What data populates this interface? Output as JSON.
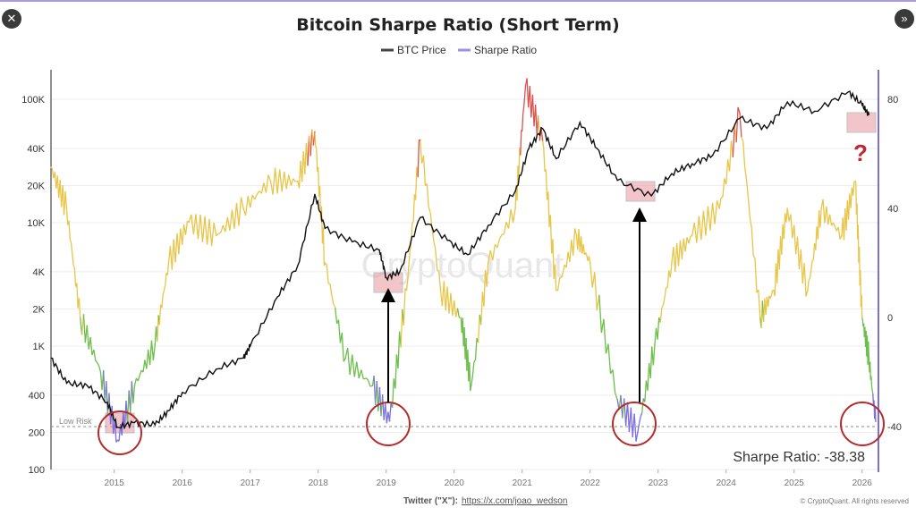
{
  "nav": {
    "close_icon": "close-icon",
    "next_icon": "double-chevron-right-icon",
    "close_label": "✕",
    "next_label": "»"
  },
  "chart_data": {
    "type": "line",
    "title": "Bitcoin Sharpe Ratio (Short Term)",
    "legend": [
      {
        "name": "BTC Price",
        "color": "#111111"
      },
      {
        "name": "Sharpe Ratio",
        "color": "#7b6fe0"
      }
    ],
    "legend_placement": "top-center",
    "left_axis": {
      "scale": "log",
      "ticks": [
        "100",
        "200",
        "400",
        "1K",
        "2K",
        "4K",
        "10K",
        "20K",
        "40K",
        "100K"
      ],
      "tick_values": [
        100,
        200,
        400,
        1000,
        2000,
        4000,
        10000,
        20000,
        40000,
        100000
      ],
      "range": [
        100,
        130000
      ]
    },
    "right_axis": {
      "ticks": [
        "80",
        "40",
        "0",
        "-40"
      ],
      "tick_values": [
        80,
        40,
        0,
        -40
      ]
    },
    "x_ticks": [
      "2015",
      "2016",
      "2017",
      "2018",
      "2019",
      "2020",
      "2021",
      "2022",
      "2023",
      "2024",
      "2025",
      "2026"
    ],
    "x_range": [
      2014.07,
      2026.24
    ],
    "grid": "horizontal",
    "series": [
      {
        "name": "BTC Price",
        "axis": "left",
        "points": [
          [
            2014.07,
            800
          ],
          [
            2014.3,
            500
          ],
          [
            2014.6,
            480
          ],
          [
            2014.9,
            350
          ],
          [
            2015.05,
            220
          ],
          [
            2015.3,
            240
          ],
          [
            2015.6,
            230
          ],
          [
            2015.8,
            300
          ],
          [
            2016.0,
            420
          ],
          [
            2016.5,
            650
          ],
          [
            2016.9,
            800
          ],
          [
            2017.0,
            1000
          ],
          [
            2017.4,
            2500
          ],
          [
            2017.7,
            4500
          ],
          [
            2017.95,
            17000
          ],
          [
            2018.1,
            9000
          ],
          [
            2018.5,
            7000
          ],
          [
            2018.9,
            6000
          ],
          [
            2019.0,
            3600
          ],
          [
            2019.2,
            4000
          ],
          [
            2019.5,
            11000
          ],
          [
            2019.9,
            7200
          ],
          [
            2020.2,
            5500
          ],
          [
            2020.5,
            9500
          ],
          [
            2020.9,
            18000
          ],
          [
            2021.1,
            40000
          ],
          [
            2021.3,
            58000
          ],
          [
            2021.5,
            33000
          ],
          [
            2021.85,
            65000
          ],
          [
            2022.1,
            40000
          ],
          [
            2022.4,
            22000
          ],
          [
            2022.9,
            16500
          ],
          [
            2023.2,
            25000
          ],
          [
            2023.5,
            30000
          ],
          [
            2023.8,
            35000
          ],
          [
            2024.2,
            70000
          ],
          [
            2024.6,
            58000
          ],
          [
            2024.9,
            95000
          ],
          [
            2025.3,
            80000
          ],
          [
            2025.8,
            115000
          ],
          [
            2026.0,
            90000
          ],
          [
            2026.1,
            75000
          ]
        ]
      },
      {
        "name": "Sharpe Ratio",
        "axis": "right",
        "points": [
          [
            2014.07,
            55
          ],
          [
            2014.3,
            40
          ],
          [
            2014.5,
            0
          ],
          [
            2014.8,
            -20
          ],
          [
            2015.05,
            -45
          ],
          [
            2015.3,
            -25
          ],
          [
            2015.6,
            -10
          ],
          [
            2015.8,
            20
          ],
          [
            2016.1,
            35
          ],
          [
            2016.5,
            30
          ],
          [
            2016.9,
            40
          ],
          [
            2017.3,
            50
          ],
          [
            2017.7,
            50
          ],
          [
            2017.95,
            68
          ],
          [
            2018.1,
            20
          ],
          [
            2018.4,
            -15
          ],
          [
            2018.8,
            -25
          ],
          [
            2019.05,
            -38
          ],
          [
            2019.3,
            10
          ],
          [
            2019.5,
            65
          ],
          [
            2019.8,
            10
          ],
          [
            2020.1,
            0
          ],
          [
            2020.25,
            -25
          ],
          [
            2020.5,
            20
          ],
          [
            2020.9,
            40
          ],
          [
            2021.05,
            85
          ],
          [
            2021.3,
            65
          ],
          [
            2021.5,
            10
          ],
          [
            2021.8,
            30
          ],
          [
            2022.0,
            20
          ],
          [
            2022.4,
            -30
          ],
          [
            2022.7,
            -42
          ],
          [
            2022.95,
            -10
          ],
          [
            2023.2,
            20
          ],
          [
            2023.5,
            30
          ],
          [
            2023.9,
            40
          ],
          [
            2024.2,
            75
          ],
          [
            2024.5,
            0
          ],
          [
            2024.7,
            10
          ],
          [
            2024.9,
            40
          ],
          [
            2025.2,
            10
          ],
          [
            2025.4,
            40
          ],
          [
            2025.7,
            30
          ],
          [
            2025.9,
            50
          ],
          [
            2026.0,
            0
          ],
          [
            2026.1,
            -15
          ],
          [
            2026.2,
            -38.38
          ]
        ]
      }
    ],
    "zone_colors": {
      "high": "#d9534f",
      "neutral": "#e8c547",
      "low": "#6cbf4a",
      "extreme_low": "#7b6fe0"
    },
    "annotations": {
      "low_risk_label": "Low Risk",
      "low_risk_level": -40,
      "current_value_label": "Sharpe Ratio: -38.38",
      "question_mark": "?",
      "watermark": "CryptoQuant"
    }
  },
  "footer": {
    "twitter_label": "Twitter (\"X\"):",
    "twitter_link": "https://x.com/joao_wedson",
    "copyright": "© CryptoQuant. All rights reserved"
  }
}
